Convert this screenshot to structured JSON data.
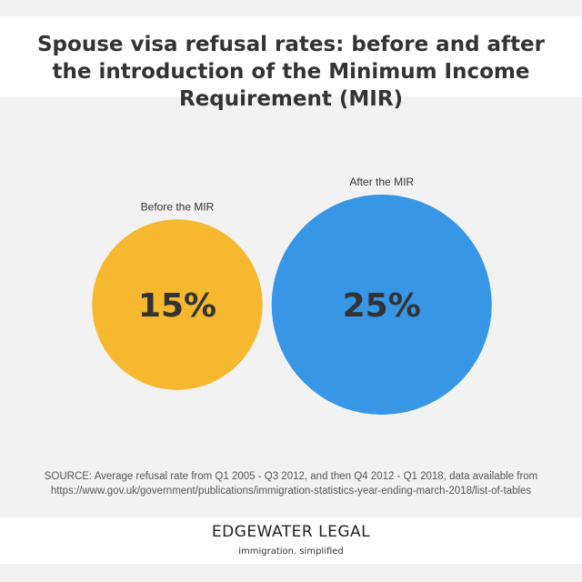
{
  "chart_data": {
    "type": "bubble",
    "title": "Spouse visa refusal rates: before and after the introduction of the Minimum Income Requirement (MIR)",
    "categories": [
      "Before the MIR",
      "After the MIR"
    ],
    "values": [
      15,
      25
    ],
    "value_labels": [
      "15%",
      "25%"
    ],
    "colors": [
      "#f5b82e",
      "#3796e6"
    ],
    "value_label_color": "#333333",
    "legend": "none"
  },
  "source": {
    "line1": "SOURCE: Average refusal rate from Q1 2005 - Q3 2012, and then Q4 2012 - Q1 2018, data available from",
    "line2": "https://www.gov.uk/government/publications/immigration-statistics-year-ending-march-2018/list-of-tables"
  },
  "footer": {
    "brand": "EDGEWATER LEGAL",
    "tagline": "immigration. simplified"
  },
  "colors": {
    "background": "#f2f2f2",
    "band": "#ffffff",
    "text": "#333333"
  }
}
